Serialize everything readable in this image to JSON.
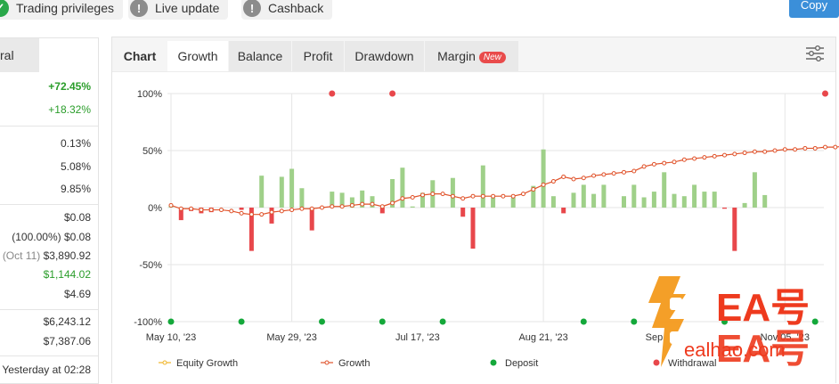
{
  "top_pills": [
    {
      "label": "Trading privileges",
      "icon": "check-icon",
      "color": "#2aa84a"
    },
    {
      "label": "Live update",
      "icon": "exclamation-icon",
      "color": "#8c8c8c"
    },
    {
      "label": "Cashback",
      "icon": "exclamation-icon",
      "color": "#8c8c8c"
    }
  ],
  "copy_label": "Copy",
  "left": {
    "tab_label": "ral",
    "gain_total": "+72.45%",
    "gain_abs": "+18.32%",
    "daily": "0.13%",
    "monthly": "5.08%",
    "drawdown": "9.85%",
    "balance": "$0.08",
    "equity_pct": "(100.00%)",
    "equity_val": "$0.08",
    "highest_date": "(Oct 11)",
    "highest_val": "$3,890.92",
    "profit": "$1,144.02",
    "interest": "$4.69",
    "deposits": "$6,243.12",
    "withdrawals": "$7,387.06",
    "updated": "Yesterday at 02:28"
  },
  "tabs": {
    "chart": "Chart",
    "growth": "Growth",
    "balance": "Balance",
    "profit": "Profit",
    "drawdown": "Drawdown",
    "margin": "Margin",
    "new_badge": "New"
  },
  "watermark": {
    "text1": "EA号",
    "text2": "EA号",
    "url": "ealhao.com"
  },
  "chart_data": {
    "type": "line",
    "ylim": [
      -100,
      100
    ],
    "yticks": [
      "100%",
      "50%",
      "0%",
      "-50%",
      "-100%"
    ],
    "xticks": [
      "May 10, '23",
      "May 29, '23",
      "Jul 17, '23",
      "Aug 21, '23",
      "Sep",
      "Nov 05, '23"
    ],
    "legend": [
      "Equity Growth",
      "Growth",
      "Deposit",
      "Withdrawal"
    ],
    "colors": {
      "growth": "#e0522a",
      "equity": "#f0b428",
      "bar_pos": "#9fd089",
      "bar_neg": "#e8474b",
      "deposit": "#14a83a",
      "withdrawal": "#e8474b"
    },
    "growth": [
      2,
      -1,
      -1,
      -2,
      -2,
      -2,
      -3,
      -5,
      -6,
      -6,
      -4,
      -3,
      -2,
      -1,
      -1,
      0,
      1,
      1,
      2,
      3,
      3,
      1,
      4,
      8,
      9,
      11,
      12,
      12,
      10,
      8,
      10,
      10,
      10,
      10,
      10,
      12,
      16,
      20,
      23,
      27,
      25,
      26,
      28,
      29,
      30,
      31,
      32,
      36,
      38,
      39,
      40,
      42,
      43,
      44,
      45,
      46,
      47,
      48,
      49,
      49,
      50,
      51,
      51,
      52,
      52,
      53,
      53,
      54,
      55,
      56,
      57,
      58,
      60,
      62,
      64,
      65,
      66,
      67,
      68,
      68,
      69,
      70,
      70,
      70,
      72,
      73
    ],
    "bars": [
      {
        "i": 0,
        "v": 2
      },
      {
        "i": 1,
        "v": -11
      },
      {
        "i": 2,
        "v": -3
      },
      {
        "i": 3,
        "v": -5
      },
      {
        "i": 4,
        "v": -4
      },
      {
        "i": 7,
        "v": -2
      },
      {
        "i": 8,
        "v": -38
      },
      {
        "i": 9,
        "v": 28
      },
      {
        "i": 10,
        "v": -14
      },
      {
        "i": 11,
        "v": 27
      },
      {
        "i": 12,
        "v": 34
      },
      {
        "i": 13,
        "v": 17
      },
      {
        "i": 14,
        "v": -20
      },
      {
        "i": 16,
        "v": 14
      },
      {
        "i": 17,
        "v": 13
      },
      {
        "i": 18,
        "v": 9
      },
      {
        "i": 19,
        "v": 15
      },
      {
        "i": 20,
        "v": 10
      },
      {
        "i": 21,
        "v": -5
      },
      {
        "i": 22,
        "v": 25
      },
      {
        "i": 23,
        "v": 35
      },
      {
        "i": 24,
        "v": 1
      },
      {
        "i": 25,
        "v": 13
      },
      {
        "i": 26,
        "v": 24
      },
      {
        "i": 28,
        "v": 26
      },
      {
        "i": 29,
        "v": -8
      },
      {
        "i": 30,
        "v": -36
      },
      {
        "i": 31,
        "v": 37
      },
      {
        "i": 32,
        "v": 9
      },
      {
        "i": 34,
        "v": 9
      },
      {
        "i": 36,
        "v": 19
      },
      {
        "i": 37,
        "v": 51
      },
      {
        "i": 38,
        "v": 10
      },
      {
        "i": 39,
        "v": -5
      },
      {
        "i": 40,
        "v": 13
      },
      {
        "i": 41,
        "v": 20
      },
      {
        "i": 42,
        "v": 12
      },
      {
        "i": 43,
        "v": 20
      },
      {
        "i": 45,
        "v": 10
      },
      {
        "i": 46,
        "v": 20
      },
      {
        "i": 47,
        "v": 9
      },
      {
        "i": 48,
        "v": 14
      },
      {
        "i": 49,
        "v": 31
      },
      {
        "i": 50,
        "v": 12
      },
      {
        "i": 51,
        "v": 10
      },
      {
        "i": 52,
        "v": 20
      },
      {
        "i": 53,
        "v": 14
      },
      {
        "i": 54,
        "v": 14
      },
      {
        "i": 55,
        "v": -1
      },
      {
        "i": 56,
        "v": -38
      },
      {
        "i": 57,
        "v": 4
      },
      {
        "i": 58,
        "v": 31
      },
      {
        "i": 59,
        "v": 11
      }
    ],
    "deposits": [
      0,
      7,
      15,
      21,
      27,
      41,
      46,
      55,
      64,
      70
    ],
    "withdrawals": [
      16,
      22,
      65,
      70
    ]
  }
}
